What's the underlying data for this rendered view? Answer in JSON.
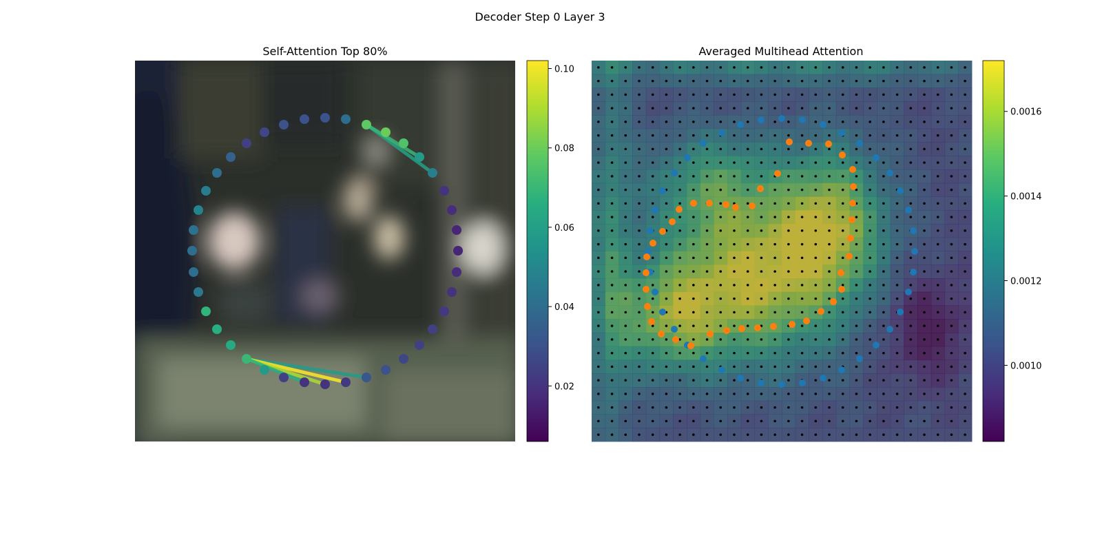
{
  "figure": {
    "title": "Decoder Step 0 Layer 3"
  },
  "chart_data": [
    {
      "type": "scatter",
      "title": "Self-Attention Top 80%",
      "xlabel": "",
      "ylabel": "",
      "axes_visible": false,
      "background": "blurred camera image (dark interior scene)",
      "colormap": "viridis",
      "colorbar": {
        "range": [
          0.006,
          0.102
        ],
        "ticks": [
          0.02,
          0.04,
          0.06,
          0.08,
          0.1
        ],
        "tick_labels": [
          "0.02",
          "0.04",
          "0.06",
          "0.08",
          "0.10"
        ]
      },
      "query_points": [
        {
          "x": 472,
          "y": 171,
          "v": 0.03
        },
        {
          "x": 502,
          "y": 173,
          "v": 0.04
        },
        {
          "x": 532,
          "y": 181,
          "v": 0.078
        },
        {
          "x": 560,
          "y": 192,
          "v": 0.08
        },
        {
          "x": 586,
          "y": 208,
          "v": 0.075
        },
        {
          "x": 609,
          "y": 228,
          "v": 0.058
        },
        {
          "x": 628,
          "y": 251,
          "v": 0.047
        },
        {
          "x": 645,
          "y": 277,
          "v": 0.02
        },
        {
          "x": 656,
          "y": 305,
          "v": 0.018
        },
        {
          "x": 663,
          "y": 334,
          "v": 0.016
        },
        {
          "x": 665,
          "y": 364,
          "v": 0.016
        },
        {
          "x": 663,
          "y": 395,
          "v": 0.018
        },
        {
          "x": 656,
          "y": 424,
          "v": 0.02
        },
        {
          "x": 645,
          "y": 452,
          "v": 0.022
        },
        {
          "x": 628,
          "y": 478,
          "v": 0.024
        },
        {
          "x": 609,
          "y": 501,
          "v": 0.024
        },
        {
          "x": 586,
          "y": 521,
          "v": 0.026
        },
        {
          "x": 560,
          "y": 537,
          "v": 0.03
        },
        {
          "x": 532,
          "y": 548,
          "v": 0.032
        },
        {
          "x": 502,
          "y": 555,
          "v": 0.022
        },
        {
          "x": 472,
          "y": 558,
          "v": 0.02
        },
        {
          "x": 442,
          "y": 555,
          "v": 0.02
        },
        {
          "x": 412,
          "y": 548,
          "v": 0.024
        },
        {
          "x": 384,
          "y": 537,
          "v": 0.058
        },
        {
          "x": 358,
          "y": 521,
          "v": 0.07
        },
        {
          "x": 335,
          "y": 501,
          "v": 0.064
        },
        {
          "x": 315,
          "y": 478,
          "v": 0.066
        },
        {
          "x": 299,
          "y": 452,
          "v": 0.068
        },
        {
          "x": 288,
          "y": 424,
          "v": 0.044
        },
        {
          "x": 281,
          "y": 395,
          "v": 0.04
        },
        {
          "x": 279,
          "y": 364,
          "v": 0.04
        },
        {
          "x": 281,
          "y": 334,
          "v": 0.042
        },
        {
          "x": 288,
          "y": 305,
          "v": 0.048
        },
        {
          "x": 299,
          "y": 277,
          "v": 0.046
        },
        {
          "x": 315,
          "y": 251,
          "v": 0.04
        },
        {
          "x": 335,
          "y": 228,
          "v": 0.036
        },
        {
          "x": 358,
          "y": 208,
          "v": 0.024
        },
        {
          "x": 384,
          "y": 192,
          "v": 0.026
        },
        {
          "x": 412,
          "y": 181,
          "v": 0.03
        },
        {
          "x": 442,
          "y": 173,
          "v": 0.03
        }
      ],
      "attention_links": [
        {
          "from": [
            532,
            181
          ],
          "to": [
            628,
            251
          ],
          "v": 0.06
        },
        {
          "from": [
            532,
            181
          ],
          "to": [
            609,
            228
          ],
          "v": 0.07
        },
        {
          "from": [
            358,
            521
          ],
          "to": [
            532,
            548
          ],
          "v": 0.058
        },
        {
          "from": [
            358,
            521
          ],
          "to": [
            502,
            555
          ],
          "v": 0.102
        },
        {
          "from": [
            358,
            521
          ],
          "to": [
            472,
            558
          ],
          "v": 0.09
        },
        {
          "from": [
            358,
            521
          ],
          "to": [
            442,
            555
          ],
          "v": 0.066
        }
      ]
    },
    {
      "type": "heatmap",
      "title": "Averaged Multihead Attention",
      "xlabel": "",
      "ylabel": "",
      "axes_visible": false,
      "colormap": "viridis",
      "colorbar": {
        "range": [
          0.00082,
          0.00172
        ],
        "ticks": [
          0.001,
          0.0012,
          0.0014,
          0.0016
        ],
        "tick_labels": [
          "0.0010",
          "0.0012",
          "0.0014",
          "0.0016"
        ]
      },
      "grid_size": [
        28,
        28
      ],
      "hotspots": [
        {
          "cx": 0.42,
          "cy": 0.58,
          "sx": 0.17,
          "sy": 0.15,
          "w": 1.0
        },
        {
          "cx": 0.63,
          "cy": 0.42,
          "sx": 0.1,
          "sy": 0.14,
          "w": 0.85
        },
        {
          "cx": 0.2,
          "cy": 0.68,
          "sx": 0.1,
          "sy": 0.1,
          "w": 0.65
        },
        {
          "cx": 0.32,
          "cy": 0.32,
          "sx": 0.12,
          "sy": 0.1,
          "w": 0.55
        },
        {
          "cx": 0.05,
          "cy": 0.5,
          "sx": 0.04,
          "sy": 0.4,
          "w": 0.45
        },
        {
          "cx": 0.5,
          "cy": 0.02,
          "sx": 0.45,
          "sy": 0.03,
          "w": 0.4
        },
        {
          "cx": 0.88,
          "cy": 0.7,
          "sx": -0.08,
          "sy": 0.1,
          "w": -0.35
        }
      ],
      "series": [
        {
          "name": "",
          "color": "#1f77b4",
          "points": [
            [
              1105,
              174
            ],
            [
              1135,
              172
            ],
            [
              1165,
              174
            ],
            [
              1195,
              181
            ],
            [
              1222,
              193
            ],
            [
              1248,
              208
            ],
            [
              1272,
              229
            ],
            [
              1292,
              251
            ],
            [
              1307,
              277
            ],
            [
              1319,
              305
            ],
            [
              1326,
              335
            ],
            [
              1328,
              365
            ],
            [
              1326,
              395
            ],
            [
              1319,
              424
            ],
            [
              1307,
              453
            ],
            [
              1292,
              478
            ],
            [
              1272,
              501
            ],
            [
              1248,
              521
            ],
            [
              1222,
              537
            ],
            [
              1195,
              549
            ],
            [
              1165,
              556
            ],
            [
              1135,
              558
            ],
            [
              1105,
              556
            ],
            [
              1075,
              549
            ],
            [
              1048,
              537
            ],
            [
              1021,
              521
            ],
            [
              998,
              501
            ],
            [
              979,
              478
            ],
            [
              962,
              453
            ],
            [
              951,
              424
            ],
            [
              944,
              395
            ],
            [
              941,
              365
            ],
            [
              944,
              335
            ],
            [
              951,
              305
            ],
            [
              962,
              277
            ],
            [
              979,
              251
            ],
            [
              998,
              229
            ],
            [
              1021,
              208
            ],
            [
              1048,
              193
            ],
            [
              1075,
              181
            ]
          ]
        },
        {
          "name": "",
          "color": "#ff7f0e",
          "points": [
            [
              1146,
              206
            ],
            [
              1174,
              208
            ],
            [
              1203,
              209
            ],
            [
              1223,
              225
            ],
            [
              1238,
              246
            ],
            [
              1239,
              271
            ],
            [
              1238,
              295
            ],
            [
              1237,
              319
            ],
            [
              1235,
              346
            ],
            [
              1233,
              372
            ],
            [
              1221,
              396
            ],
            [
              1222,
              420
            ],
            [
              1210,
              438
            ],
            [
              1192,
              452
            ],
            [
              1171,
              466
            ],
            [
              1150,
              471
            ],
            [
              1123,
              474
            ],
            [
              1100,
              476
            ],
            [
              1077,
              477
            ],
            [
              1055,
              480
            ],
            [
              1031,
              485
            ],
            [
              1003,
              502
            ],
            [
              981,
              493
            ],
            [
              960,
              485
            ],
            [
              946,
              467
            ],
            [
              940,
              445
            ],
            [
              938,
              420
            ],
            [
              938,
              396
            ],
            [
              939,
              373
            ],
            [
              948,
              353
            ],
            [
              962,
              336
            ],
            [
              976,
              322
            ],
            [
              986,
              304
            ],
            [
              1007,
              295
            ],
            [
              1030,
              295
            ],
            [
              1054,
              297
            ],
            [
              1068,
              301
            ],
            [
              1092,
              299
            ],
            [
              1104,
              274
            ],
            [
              1129,
              252
            ]
          ]
        }
      ],
      "grid_dots_color": "#000000"
    }
  ]
}
